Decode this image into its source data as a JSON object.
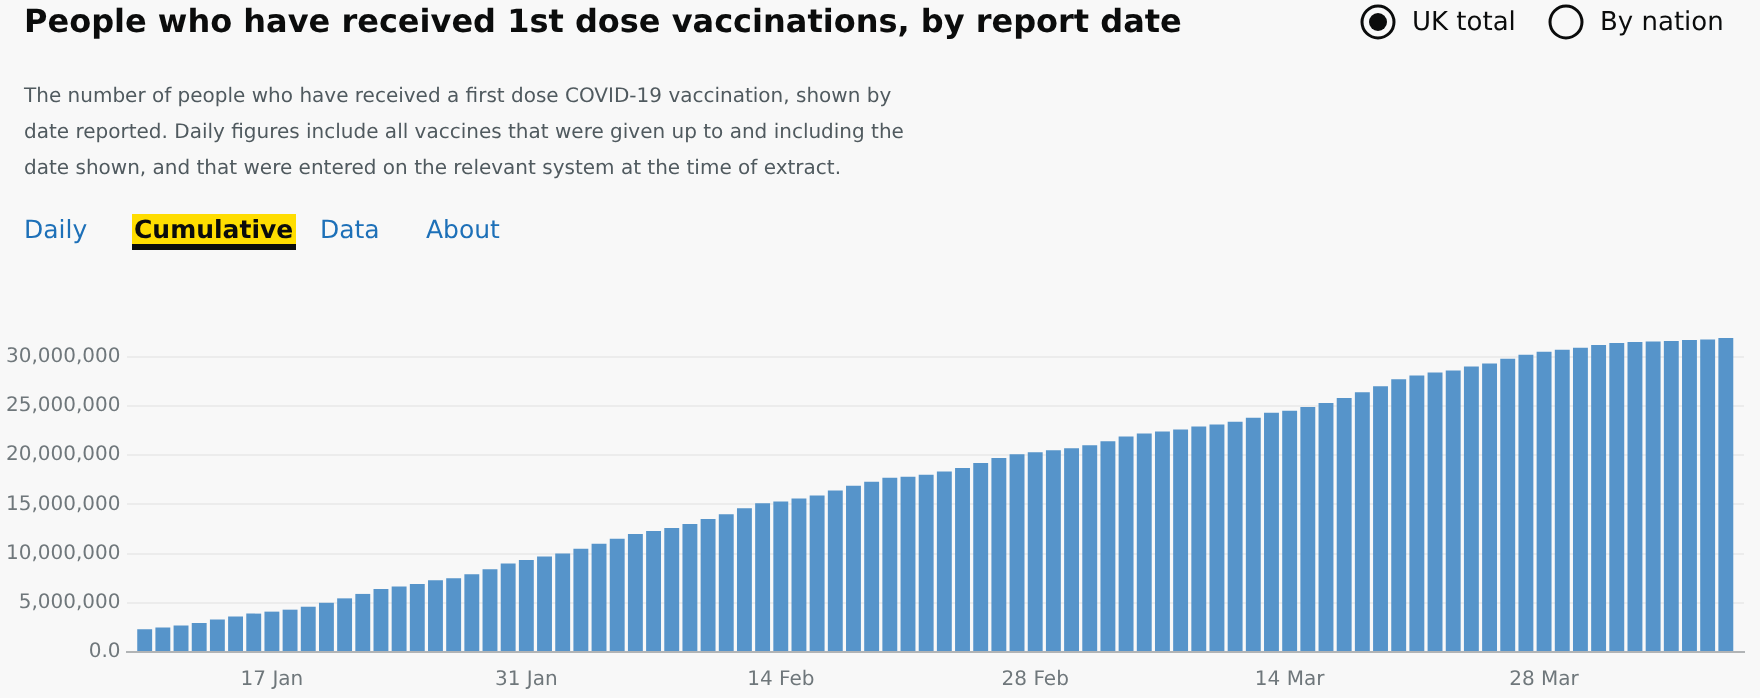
{
  "chart_data": {
    "type": "bar",
    "title": "People who have received 1st dose vaccinations, by report date",
    "annotations": [
      "The number of people who have received a first dose COVID-19 vaccination, shown by date reported. Daily figures include all vaccines that were given up to and including the date shown, and that were entered on the relevant system at the time of extract.",
      "UK total",
      "By nation",
      "Daily",
      "Cumulative",
      "Data",
      "About"
    ],
    "x": [
      "--01-10",
      "--01-11",
      "--01-12",
      "--01-13",
      "--01-14",
      "--01-15",
      "--01-16",
      "--01-17",
      "--01-18",
      "--01-19",
      "--01-20",
      "--01-21",
      "--01-22",
      "--01-23",
      "--01-24",
      "--01-25",
      "--01-26",
      "--01-27",
      "--01-28",
      "--01-29",
      "--01-30",
      "--01-31",
      "--02-01",
      "--02-02",
      "--02-03",
      "--02-04",
      "--02-05",
      "--02-06",
      "--02-07",
      "--02-08",
      "--02-09",
      "--02-10",
      "--02-11",
      "--02-12",
      "--02-13",
      "--02-14",
      "--02-15",
      "--02-16",
      "--02-17",
      "--02-18",
      "--02-19",
      "--02-20",
      "--02-21",
      "--02-22",
      "--02-23",
      "--02-24",
      "--02-25",
      "--02-26",
      "--02-27",
      "--02-28",
      "--03-01",
      "--03-02",
      "--03-03",
      "--03-04",
      "--03-05",
      "--03-06",
      "--03-07",
      "--03-08",
      "--03-09",
      "--03-10",
      "--03-11",
      "--03-12",
      "--03-13",
      "--03-14",
      "--03-15",
      "--03-16",
      "--03-17",
      "--03-18",
      "--03-19",
      "--03-20",
      "--03-21",
      "--03-22",
      "--03-23",
      "--03-24",
      "--03-25",
      "--03-26",
      "--03-27",
      "--03-28",
      "--03-29",
      "--03-30",
      "--03-31",
      "--04-01",
      "--04-02",
      "--04-03",
      "--04-04",
      "--04-05",
      "--04-06",
      "--04-07"
    ],
    "values": [
      2300000,
      2500000,
      2700000,
      2950000,
      3300000,
      3600000,
      3900000,
      4100000,
      4300000,
      4600000,
      5000000,
      5450000,
      5900000,
      6400000,
      6650000,
      6900000,
      7300000,
      7500000,
      7900000,
      8400000,
      9000000,
      9350000,
      9700000,
      10000000,
      10500000,
      11000000,
      11500000,
      12000000,
      12300000,
      12600000,
      13000000,
      13500000,
      14000000,
      14600000,
      15100000,
      15300000,
      15600000,
      15900000,
      16400000,
      16900000,
      17300000,
      17700000,
      17800000,
      18000000,
      18350000,
      18700000,
      19200000,
      19700000,
      20100000,
      20300000,
      20500000,
      20700000,
      21000000,
      21400000,
      21900000,
      22200000,
      22400000,
      22600000,
      22900000,
      23100000,
      23400000,
      23800000,
      24300000,
      24500000,
      24900000,
      25300000,
      25800000,
      26400000,
      27000000,
      27700000,
      28100000,
      28400000,
      28600000,
      29000000,
      29300000,
      29800000,
      30200000,
      30500000,
      30700000,
      30900000,
      31200000,
      31400000,
      31500000,
      31550000,
      31600000,
      31700000,
      31750000,
      31900000
    ],
    "color": "#5694ca",
    "xlim": [
      "--01-09",
      "--04-08"
    ],
    "xticks": [
      {
        "value": "--01-17",
        "label": "17 Jan"
      },
      {
        "value": "--01-31",
        "label": "31 Jan"
      },
      {
        "value": "--02-14",
        "label": "14 Feb"
      },
      {
        "value": "--02-28",
        "label": "28 Feb"
      },
      {
        "value": "--03-14",
        "label": "14 Mar"
      },
      {
        "value": "--03-28",
        "label": "28 Mar"
      }
    ],
    "ylim": [
      0,
      31900000
    ],
    "yticks": [
      {
        "value": 0,
        "label": "0.0"
      },
      {
        "value": 5000000,
        "label": "5,000,000"
      },
      {
        "value": 10000000,
        "label": "10,000,000"
      },
      {
        "value": 15000000,
        "label": "15,000,000"
      },
      {
        "value": 20000000,
        "label": "20,000,000"
      },
      {
        "value": 25000000,
        "label": "25,000,000"
      },
      {
        "value": 30000000,
        "label": "30,000,000"
      }
    ],
    "grid": "y",
    "legend": false
  }
}
